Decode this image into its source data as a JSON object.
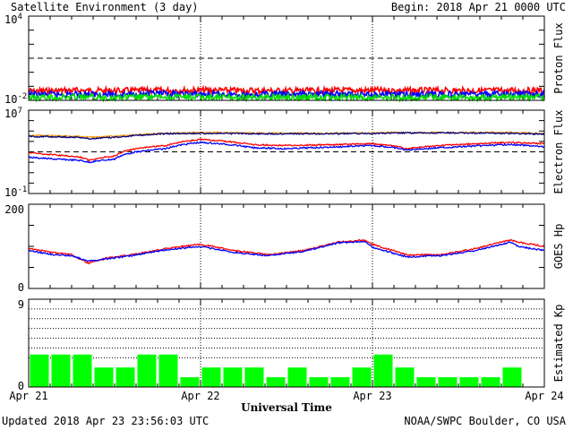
{
  "header": {
    "title": "Satellite Environment (3 day)",
    "begin": "Begin:  2018 Apr 21 0000 UTC"
  },
  "footer": {
    "updated": "Updated 2018 Apr 23 23:56:03 UTC",
    "credit": "NOAA/SWPC Boulder, CO USA"
  },
  "chart_data": [
    {
      "type": "line",
      "panel": "proton",
      "ylabel": "Proton Flux",
      "yscale": "log",
      "ylim": [
        0.01,
        10000
      ],
      "ytick_labels": [
        {
          "base": "10",
          "exp": "4"
        },
        {
          "base": "10",
          "exp": "-2"
        }
      ],
      "threshold": 10,
      "xlim_days": [
        0,
        3
      ],
      "series": [
        {
          "color": "#ff0000",
          "values": [
            0.045,
            0.05,
            0.048,
            0.05,
            0.052,
            0.05,
            0.048,
            0.05,
            0.051,
            0.05,
            0.049,
            0.05,
            0.05
          ]
        },
        {
          "color": "#0000ff",
          "values": [
            0.025,
            0.027,
            0.026,
            0.028,
            0.027,
            0.026,
            0.027,
            0.028,
            0.027,
            0.026,
            0.027,
            0.027,
            0.027
          ]
        },
        {
          "color": "#00dd00",
          "values": [
            0.016,
            0.017,
            0.016,
            0.017,
            0.017,
            0.016,
            0.017,
            0.017,
            0.016,
            0.017,
            0.017,
            0.016,
            0.017
          ]
        }
      ]
    },
    {
      "type": "line",
      "panel": "electron",
      "ylabel": "Electron Flux",
      "yscale": "log",
      "ylim": [
        0.1,
        10000000
      ],
      "ytick_labels": [
        {
          "base": "10",
          "exp": "7"
        },
        {
          "base": "10",
          "exp": "-1"
        }
      ],
      "threshold": 1000,
      "xlim_days": [
        0,
        3
      ],
      "x": [
        0,
        0.15,
        0.3,
        0.35,
        0.5,
        0.8,
        1.0,
        1.3,
        1.5,
        1.8,
        2.0,
        2.2,
        2.5,
        2.8,
        3.0
      ],
      "series": [
        {
          "color": "#ff9900",
          "values": [
            40000,
            35000,
            30000,
            25000,
            30000,
            60000,
            70000,
            65000,
            60000,
            60000,
            65000,
            70000,
            70000,
            75000,
            55000
          ]
        },
        {
          "color": "#000080",
          "values": [
            30000,
            28000,
            25000,
            18000,
            25000,
            55000,
            60000,
            55000,
            55000,
            55000,
            60000,
            65000,
            65000,
            60000,
            50000
          ]
        },
        {
          "color": "#ff0000",
          "values": [
            800,
            500,
            300,
            150,
            400,
            4000,
            15000,
            5000,
            4000,
            5000,
            6000,
            2000,
            5000,
            8000,
            6000
          ]
        },
        {
          "color": "#0000ff",
          "values": [
            300,
            200,
            150,
            100,
            200,
            2000,
            8000,
            2500,
            2000,
            3000,
            4000,
            1500,
            3000,
            5000,
            3000
          ]
        }
      ]
    },
    {
      "type": "line",
      "panel": "goes-hp",
      "ylabel": "GOES Hp",
      "ylim": [
        0,
        200
      ],
      "yticks": [
        0,
        200
      ],
      "xlim_days": [
        0,
        3
      ],
      "x": [
        0,
        0.15,
        0.25,
        0.35,
        0.45,
        0.6,
        0.8,
        1.0,
        1.2,
        1.4,
        1.6,
        1.8,
        1.95,
        2.0,
        2.2,
        2.4,
        2.6,
        2.8,
        2.85,
        3.0
      ],
      "series": [
        {
          "color": "#ff0000",
          "values": [
            95,
            85,
            80,
            60,
            72,
            80,
            95,
            105,
            90,
            80,
            90,
            110,
            115,
            105,
            80,
            80,
            95,
            115,
            110,
            100
          ]
        },
        {
          "color": "#0000ff",
          "values": [
            90,
            80,
            78,
            65,
            70,
            78,
            92,
            100,
            85,
            78,
            88,
            108,
            112,
            98,
            75,
            78,
            90,
            110,
            100,
            90
          ]
        }
      ]
    },
    {
      "type": "bar",
      "panel": "kp",
      "ylabel": "Estimated Kp",
      "ylim": [
        0,
        9
      ],
      "yticks": [
        0,
        9
      ],
      "xlim_days": [
        0,
        3
      ],
      "xlabel": "Universal Time",
      "xtick_labels": [
        "Apr 21",
        "Apr 22",
        "Apr 23",
        "Apr 24"
      ],
      "color": "#00ff00",
      "values": [
        3.33,
        3.33,
        3.33,
        2,
        2,
        3.33,
        3.33,
        1,
        2,
        2,
        2,
        1,
        2,
        1,
        1,
        2,
        3.33,
        2,
        1,
        1,
        1,
        1,
        2,
        0
      ]
    }
  ]
}
